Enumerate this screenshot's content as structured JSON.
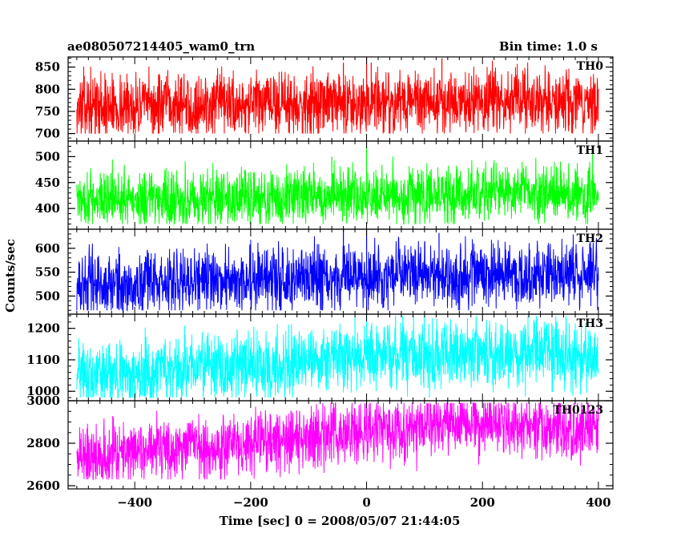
{
  "header": {
    "left_title": "ae080507214405_wam0_trn",
    "right_title": "Bin time: 1.0 s"
  },
  "axes": {
    "ylabel": "Counts/sec",
    "xlabel": "Time [sec] 0 = 2008/05/07 21:44:05",
    "xlim": [
      -515,
      425
    ],
    "xticks": [
      -400,
      -200,
      0,
      200,
      400
    ],
    "xtick_labels": [
      "−400",
      "−200",
      "0",
      "200",
      "400"
    ]
  },
  "chart_data": [
    {
      "type": "line",
      "name": "TH0",
      "color": "#ff0000",
      "ylim": [
        683,
        873
      ],
      "yticks": [
        700,
        750,
        800,
        850
      ],
      "ytick_labels": [
        "700",
        "750",
        "800",
        "850"
      ],
      "x_range": [
        -500,
        400
      ],
      "baseline": [
        [
          -500,
          760
        ],
        [
          -200,
          765
        ],
        [
          0,
          770
        ],
        [
          200,
          772
        ],
        [
          400,
          772
        ]
      ],
      "noise_range": [
        700,
        873
      ],
      "spikes": [
        [
          0,
          873
        ],
        [
          8,
          860
        ],
        [
          130,
          870
        ],
        [
          -40,
          860
        ]
      ]
    },
    {
      "type": "line",
      "name": "TH1",
      "color": "#00ff00",
      "ylim": [
        360,
        530
      ],
      "yticks": [
        400,
        450,
        500
      ],
      "ytick_labels": [
        "400",
        "450",
        "500"
      ],
      "x_range": [
        -500,
        400
      ],
      "baseline": [
        [
          -500,
          420
        ],
        [
          -200,
          420
        ],
        [
          0,
          425
        ],
        [
          200,
          430
        ],
        [
          400,
          425
        ]
      ],
      "noise_range": [
        370,
        500
      ],
      "spikes": [
        [
          0,
          530
        ],
        [
          -60,
          500
        ],
        [
          390,
          510
        ]
      ]
    },
    {
      "type": "line",
      "name": "TH2",
      "color": "#0000ff",
      "ylim": [
        462,
        640
      ],
      "yticks": [
        500,
        550,
        600
      ],
      "ytick_labels": [
        "500",
        "550",
        "600"
      ],
      "x_range": [
        -500,
        400
      ],
      "baseline": [
        [
          -500,
          525
        ],
        [
          -400,
          525
        ],
        [
          -200,
          535
        ],
        [
          0,
          540
        ],
        [
          200,
          545
        ],
        [
          400,
          545
        ]
      ],
      "noise_range": [
        470,
        630
      ],
      "spikes": [
        [
          -40,
          640
        ],
        [
          0,
          640
        ],
        [
          125,
          632
        ],
        [
          -420,
          465
        ],
        [
          0,
          462
        ]
      ]
    },
    {
      "type": "line",
      "name": "TH3",
      "color": "#00ffff",
      "ylim": [
        970,
        1245
      ],
      "yticks": [
        1000,
        1100,
        1200
      ],
      "ytick_labels": [
        "1000",
        "1100",
        "1200"
      ],
      "x_range": [
        -500,
        400
      ],
      "baseline": [
        [
          -500,
          1050
        ],
        [
          -300,
          1070
        ],
        [
          -100,
          1090
        ],
        [
          0,
          1110
        ],
        [
          200,
          1115
        ],
        [
          400,
          1110
        ]
      ],
      "noise_range": [
        980,
        1240
      ],
      "spikes": [
        [
          0,
          1245
        ],
        [
          50,
          1240
        ],
        [
          -20,
          1238
        ]
      ]
    },
    {
      "type": "line",
      "name": "TH0123",
      "color": "#ff00ff",
      "ylim": [
        2585,
        3000
      ],
      "yticks": [
        2600,
        2800,
        3000
      ],
      "ytick_labels": [
        "2600",
        "2800",
        "3000"
      ],
      "x_range": [
        -500,
        400
      ],
      "baseline": [
        [
          -500,
          2740
        ],
        [
          -300,
          2790
        ],
        [
          -100,
          2820
        ],
        [
          0,
          2860
        ],
        [
          200,
          2890
        ],
        [
          400,
          2870
        ]
      ],
      "noise_range": [
        2630,
        2990
      ],
      "spikes": [
        [
          0,
          3000
        ],
        [
          70,
          2960
        ],
        [
          190,
          2960
        ]
      ]
    }
  ]
}
